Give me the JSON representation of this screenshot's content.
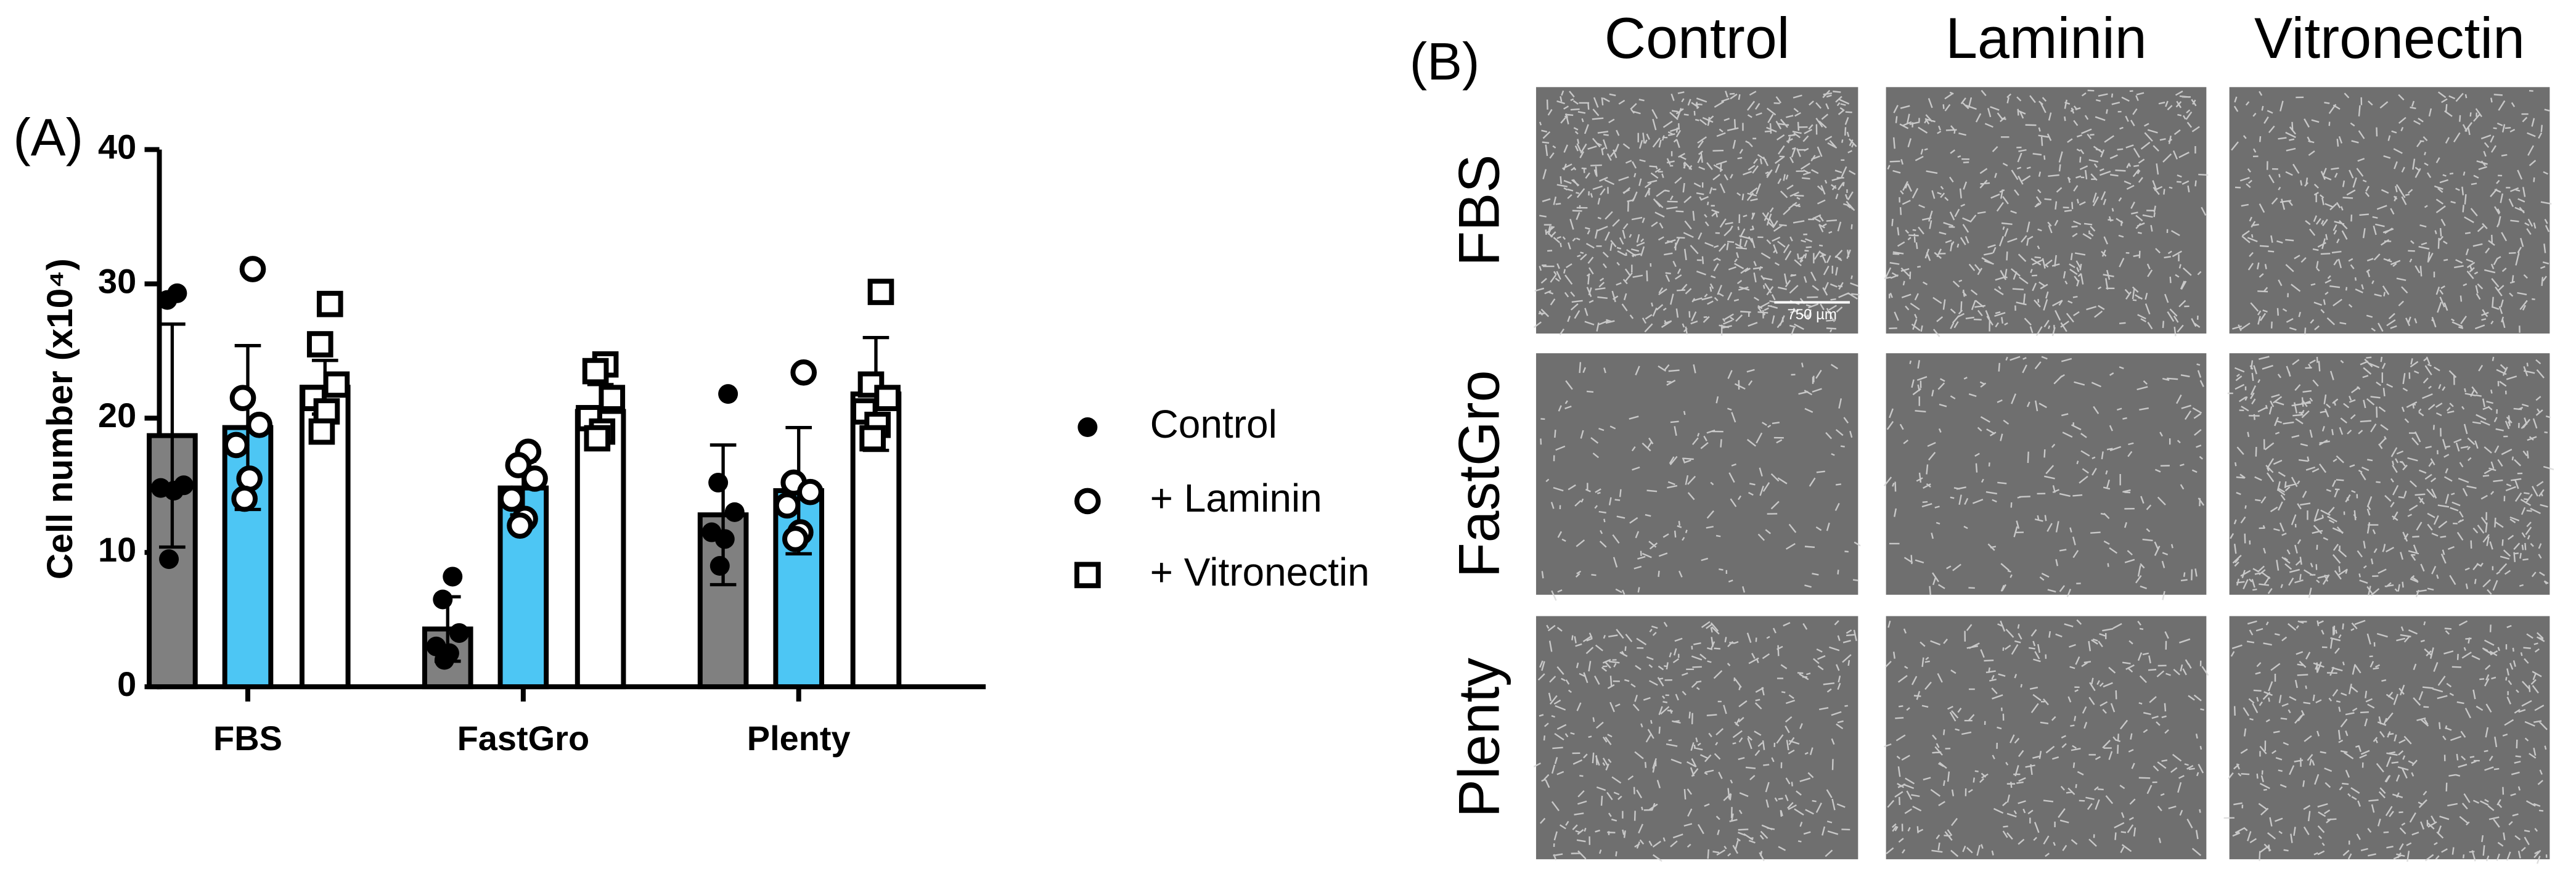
{
  "panel_labels": [
    "(A)",
    "(B)"
  ],
  "chart_data": {
    "type": "bar",
    "y_label": "Cell number (x10⁴)",
    "categories": [
      "FBS",
      "FastGro",
      "Plenty"
    ],
    "ylim": [
      0,
      40
    ],
    "yticks": [
      0,
      10,
      20,
      30,
      40
    ],
    "grid": false,
    "legend": "right",
    "series": [
      {
        "name": "Control",
        "color": "#808080",
        "marker": "filled-circle",
        "values": [
          18.7,
          4.3,
          12.8
        ],
        "errors": [
          8.3,
          2.4,
          5.2
        ],
        "points": [
          [
            29.3,
            28.8,
            15.0,
            14.8,
            14.6,
            9.5
          ],
          [
            8.2,
            6.5,
            4.0,
            3.0,
            2.5,
            2.0
          ],
          [
            21.8,
            15.2,
            13.0,
            11.5,
            11.0,
            9.0
          ]
        ]
      },
      {
        "name": "+ Laminin",
        "color": "#4dc6f4",
        "marker": "open-circle",
        "values": [
          19.3,
          14.8,
          14.6
        ],
        "errors": [
          6.1,
          2.0,
          4.7
        ],
        "points": [
          [
            31.1,
            21.5,
            19.5,
            18.0,
            15.5,
            14.0
          ],
          [
            17.5,
            16.5,
            15.5,
            14.0,
            12.5,
            12.0
          ],
          [
            23.4,
            15.2,
            14.5,
            13.5,
            11.5,
            11.0
          ]
        ]
      },
      {
        "name": "+ Vitronectin",
        "color": "#ffffff",
        "marker": "open-square",
        "values": [
          22.3,
          20.5,
          21.8
        ],
        "errors": [
          2.0,
          2.0,
          4.2
        ],
        "points": [
          [
            28.5,
            25.5,
            22.5,
            21.5,
            20.5,
            19.0
          ],
          [
            24.0,
            23.5,
            21.5,
            20.0,
            19.0,
            18.5
          ],
          [
            29.4,
            22.5,
            21.5,
            20.5,
            19.5,
            18.5
          ]
        ]
      }
    ]
  },
  "image_grid": {
    "columns": [
      "Control",
      "Laminin",
      "Vitronectin"
    ],
    "rows": [
      "FBS",
      "FastGro",
      "Plenty"
    ],
    "scale_bar": "750 µm"
  }
}
